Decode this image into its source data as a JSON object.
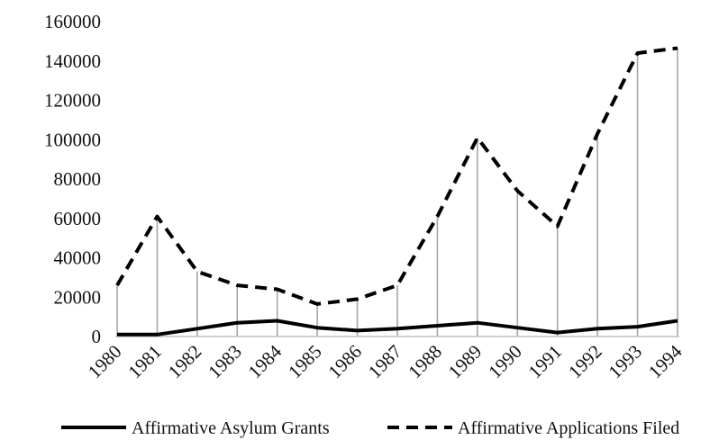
{
  "chart_data": {
    "type": "line",
    "title": "",
    "xlabel": "",
    "ylabel": "",
    "categories": [
      "1980",
      "1981",
      "1982",
      "1983",
      "1984",
      "1985",
      "1986",
      "1987",
      "1988",
      "1989",
      "1990",
      "1991",
      "1992",
      "1993",
      "1994"
    ],
    "ylim": [
      0,
      160000
    ],
    "yticks": [
      "0",
      "20000",
      "40000",
      "60000",
      "80000",
      "100000",
      "120000",
      "140000",
      "160000"
    ],
    "series": [
      {
        "name": "Affirmative Asylum Grants",
        "values": [
          1000,
          1000,
          4000,
          7000,
          8000,
          4500,
          3000,
          4000,
          5500,
          7000,
          4500,
          2000,
          4000,
          5000,
          8000
        ],
        "style": "solid",
        "color": "#000000"
      },
      {
        "name": "Affirmative Applications Filed",
        "values": [
          26000,
          61000,
          33000,
          26000,
          24000,
          16500,
          19000,
          26000,
          61000,
          101000,
          74000,
          56000,
          103000,
          144000,
          146500
        ],
        "style": "dashed",
        "color": "#000000"
      }
    ],
    "drop_lines": true,
    "drop_line_color": "#a6a6a6",
    "grid": false,
    "legend_position": "bottom"
  }
}
